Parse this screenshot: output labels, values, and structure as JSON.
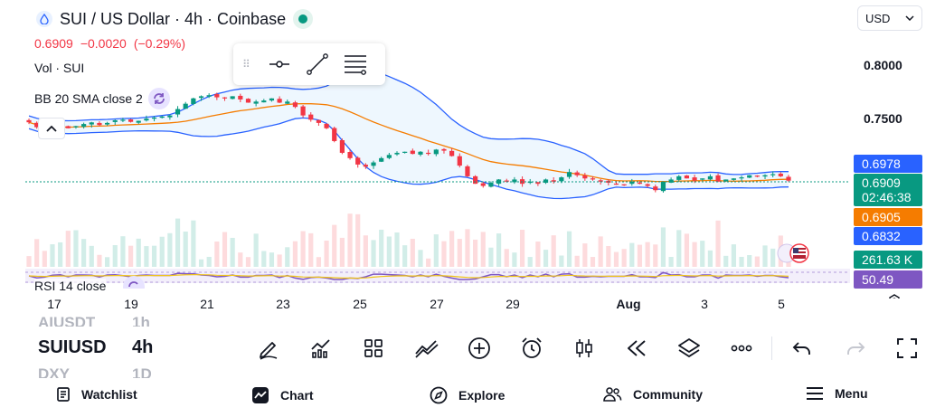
{
  "header": {
    "symbol_title": "SUI / US Dollar · 4h · Coinbase",
    "last_price": "0.6909",
    "change": "−0.0020",
    "change_pct": "(−0.29%)",
    "volume_label": "Vol · SUI",
    "indicator_label": "BB 20 SMA close 2",
    "currency": "USD"
  },
  "price_axis": {
    "ticks": [
      "0.8000",
      "0.7500"
    ],
    "tags": [
      {
        "label": "0.6978",
        "color": "#2962ff"
      },
      {
        "label": "0.6909",
        "sub": "02:46:38",
        "color": "#089981"
      },
      {
        "label": "0.6905",
        "color": "#f57c00"
      },
      {
        "label": "0.6832",
        "color": "#2962ff"
      },
      {
        "label": "261.63 K",
        "color": "#089981"
      },
      {
        "label": "50.49",
        "color": "#7e57c2"
      }
    ]
  },
  "rsi": {
    "label": "RSI 14 close"
  },
  "time_axis": {
    "labels": [
      "17",
      "19",
      "21",
      "23",
      "25",
      "27",
      "29",
      "Aug",
      "3",
      "5"
    ]
  },
  "watchlist": {
    "prev_symbol": "AIUSDT",
    "prev_tf": "1h",
    "symbol": "SUIUSD",
    "timeframe": "4h",
    "next_symbol": "DXY",
    "next_tf": "1D"
  },
  "toolbar": {
    "icons": [
      "pencil-icon",
      "indicators-icon",
      "layouts-icon",
      "compare-icon",
      "add-icon",
      "alert-icon",
      "candles-icon",
      "replay-icon",
      "layers-icon",
      "more-icon",
      "undo-icon",
      "redo-icon",
      "fullscreen-icon"
    ]
  },
  "nav": {
    "watchlist": "Watchlist",
    "chart": "Chart",
    "explore": "Explore",
    "community": "Community",
    "menu": "Menu"
  },
  "chart_data": {
    "type": "candlestick",
    "price_range": [
      0.66,
      0.8
    ],
    "closes": [
      0.7456,
      0.741,
      0.738,
      0.7395,
      0.742,
      0.74,
      0.742,
      0.744,
      0.7455,
      0.743,
      0.745,
      0.7475,
      0.748,
      0.746,
      0.747,
      0.749,
      0.75,
      0.751,
      0.752,
      0.758,
      0.763,
      0.768,
      0.77,
      0.771,
      0.769,
      0.768,
      0.77,
      0.767,
      0.764,
      0.765,
      0.766,
      0.768,
      0.764,
      0.765,
      0.76,
      0.752,
      0.748,
      0.745,
      0.74,
      0.728,
      0.717,
      0.712,
      0.706,
      0.704,
      0.708,
      0.712,
      0.715,
      0.717,
      0.718,
      0.716,
      0.718,
      0.716,
      0.72,
      0.719,
      0.714,
      0.705,
      0.695,
      0.688,
      0.686,
      0.689,
      0.692,
      0.69,
      0.692,
      0.688,
      0.69,
      0.688,
      0.692,
      0.69,
      0.694,
      0.699,
      0.696,
      0.693,
      0.692,
      0.69,
      0.689,
      0.688,
      0.687,
      0.69,
      0.688,
      0.686,
      0.682,
      0.69,
      0.692,
      0.695,
      0.693,
      0.691,
      0.693,
      0.695,
      0.69,
      0.692,
      0.693,
      0.694,
      0.696,
      0.695,
      0.696,
      0.697,
      0.695,
      0.6909
    ],
    "bb_basis": "20-period SMA",
    "bb_stddev": 2,
    "current_price": 0.6909,
    "volume_last": "261.63 K",
    "rsi_last": 50.49
  }
}
